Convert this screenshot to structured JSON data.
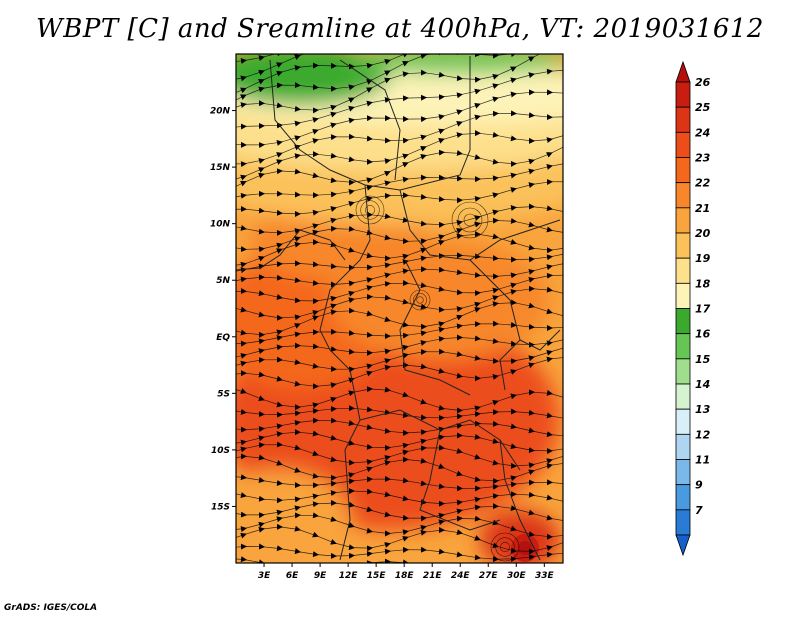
{
  "title": "WBPT [C] and Sreamline at 400hPa, VT: 2019031612",
  "credit": "GrADS: IGES/COLA",
  "lat_labels": [
    "20N",
    "15N",
    "10N",
    "5N",
    "EQ",
    "5S",
    "10S",
    "15S"
  ],
  "lat_values": [
    20,
    15,
    10,
    5,
    0,
    -5,
    -10,
    -15
  ],
  "lon_labels": [
    "3E",
    "6E",
    "9E",
    "12E",
    "15E",
    "18E",
    "21E",
    "24E",
    "27E",
    "30E",
    "33E"
  ],
  "lon_values": [
    3,
    6,
    9,
    12,
    15,
    18,
    21,
    24,
    27,
    30,
    33
  ],
  "map_extent": {
    "lon_min": 0,
    "lon_max": 35,
    "lat_min": -20,
    "lat_max": 25
  },
  "colorbar": {
    "levels": [
      "26",
      "25",
      "24",
      "23",
      "22",
      "21",
      "20",
      "19",
      "18",
      "17",
      "16",
      "15",
      "14",
      "13",
      "12",
      "11",
      "9",
      "7"
    ],
    "colors": [
      "#b4100d",
      "#c81e12",
      "#dc3417",
      "#ec4d1b",
      "#f4681e",
      "#f7872a",
      "#f9a43c",
      "#fbc15a",
      "#fde08c",
      "#fdf3b8",
      "#3aaa2e",
      "#66c655",
      "#9ede8c",
      "#d6f3d0",
      "#d8eef8",
      "#aed6f2",
      "#7ab8ea",
      "#4a9ae0",
      "#2a7bd6",
      "#1660cc"
    ]
  }
}
